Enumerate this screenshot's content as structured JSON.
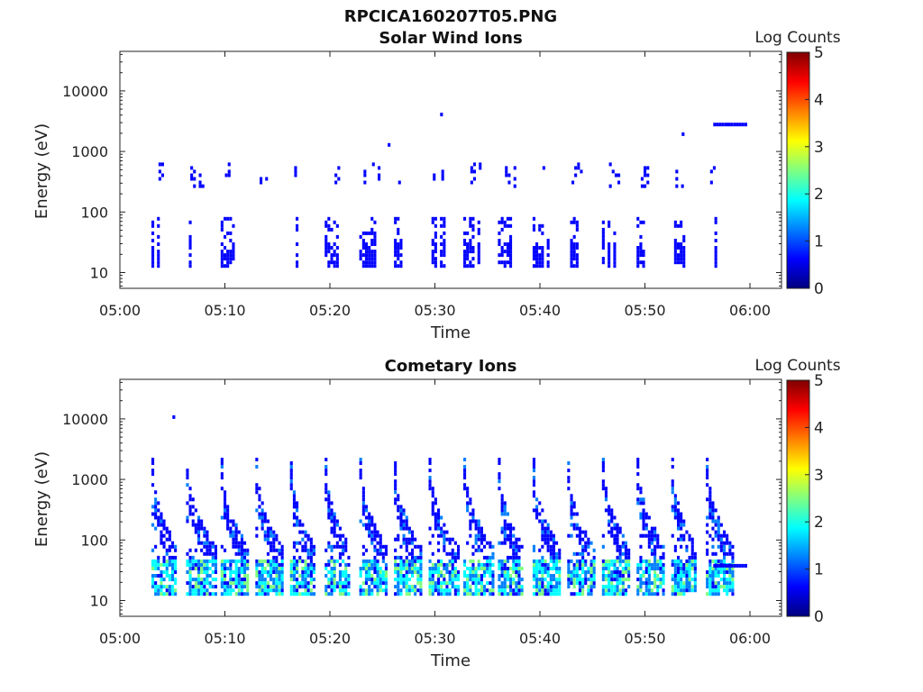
{
  "figure": {
    "title": "RPCICA160207T05.PNG"
  },
  "colormap": [
    "#00007f",
    "#0000ff",
    "#007fff",
    "#00ffff",
    "#7fff7f",
    "#ffff00",
    "#ff7f00",
    "#ff0000",
    "#7f0000"
  ],
  "chart_data": [
    {
      "type": "heatmap",
      "title": "Solar Wind Ions",
      "xlabel": "Time",
      "ylabel": "Energy (eV)",
      "y_scale": "log",
      "xlim": [
        "05:00",
        "06:03"
      ],
      "ylim": [
        5.5,
        45000
      ],
      "xticks": [
        "05:00",
        "05:10",
        "05:20",
        "05:30",
        "05:40",
        "05:50",
        "06:00"
      ],
      "yticks": [
        10,
        100,
        1000,
        10000
      ],
      "yticklabels": [
        "10",
        "100",
        "1000",
        "10000"
      ],
      "colorbar": {
        "label": "Log Counts",
        "range": [
          0,
          5
        ],
        "ticks": [
          "0",
          "1",
          "2",
          "3",
          "4",
          "5"
        ]
      },
      "pattern": {
        "start": "05:03",
        "end": "05:57",
        "period_minutes": 3.3,
        "low_band_eV": [
          12,
          75
        ],
        "mid_band_eV": [
          250,
          600
        ],
        "low_log_counts": 0.2,
        "mid_log_counts": 0.1
      },
      "features": [
        {
          "time_start": "05:56.5",
          "time_end": "05:59.5",
          "energy_eV": 2600,
          "log_counts": 0.3
        },
        {
          "time_start": "05:30.5",
          "time_end": "05:30.7",
          "energy_eV": 3800,
          "log_counts": 0.2
        },
        {
          "time_start": "05:25.5",
          "time_end": "05:25.7",
          "energy_eV": 1200,
          "log_counts": 0.2
        },
        {
          "time_start": "05:53.5",
          "time_end": "05:53.7",
          "energy_eV": 1800,
          "log_counts": 0.2
        }
      ]
    },
    {
      "type": "heatmap",
      "title": "Cometary Ions",
      "xlabel": "Time",
      "ylabel": "Energy (eV)",
      "y_scale": "log",
      "xlim": [
        "05:00",
        "06:03"
      ],
      "ylim": [
        5.5,
        45000
      ],
      "xticks": [
        "05:00",
        "05:10",
        "05:20",
        "05:30",
        "05:40",
        "05:50",
        "06:00"
      ],
      "yticks": [
        10,
        100,
        1000,
        10000
      ],
      "yticklabels": [
        "10",
        "100",
        "1000",
        "10000"
      ],
      "colorbar": {
        "label": "Log Counts",
        "range": [
          0,
          5
        ],
        "ticks": [
          "0",
          "1",
          "2",
          "3",
          "4",
          "5"
        ]
      },
      "pattern": {
        "start": "05:03",
        "end": "05:57",
        "period_minutes": 3.3,
        "sweep_low_eV": 12,
        "sweep_high_eV": 2000,
        "core_band_eV": [
          12,
          45
        ],
        "core_log_counts_max": 2.2
      },
      "features": [
        {
          "time_start": "05:56.5",
          "time_end": "05:59.5",
          "energy_eV": 35,
          "log_counts": 0.3
        },
        {
          "time_start": "05:05",
          "time_end": "05:05.2",
          "energy_eV": 10000,
          "log_counts": 0.1
        }
      ]
    }
  ]
}
